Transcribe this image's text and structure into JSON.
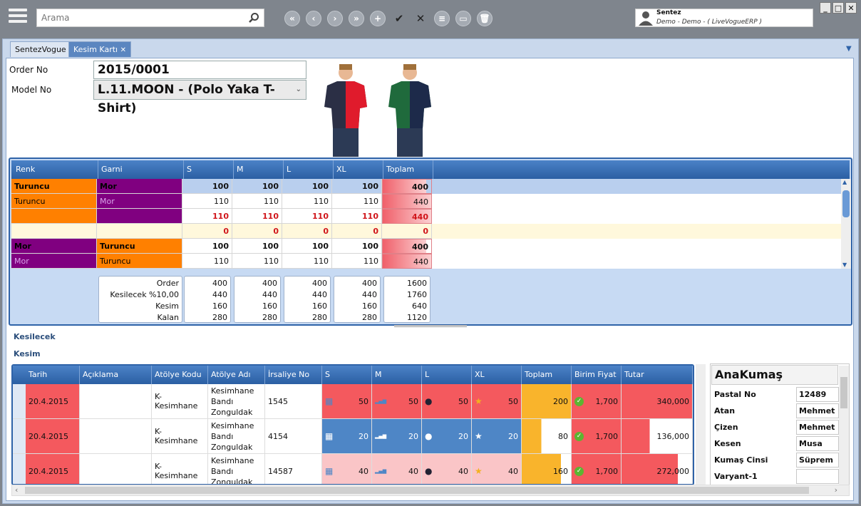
{
  "search": {
    "placeholder": "Arama"
  },
  "user": {
    "name": "Sentez",
    "company": "Demo - Demo - ( LiveVogueERP )"
  },
  "tabs": [
    {
      "label": "SentezVogue"
    },
    {
      "label": "Kesim Kartı"
    }
  ],
  "form": {
    "order_label": "Order No",
    "order_value": "2015/0001",
    "model_label": "Model No",
    "model_value": "L.11.MOON - (Polo Yaka T-Shirt)"
  },
  "grid": {
    "headers": [
      "Renk",
      "Garni",
      "S",
      "M",
      "L",
      "XL",
      "Toplam"
    ],
    "rows": [
      {
        "renk": "Turuncu",
        "garni": "Mor",
        "v": [
          "100",
          "100",
          "100",
          "100"
        ],
        "t": "400",
        "type": "bold",
        "rc": "#ff8000",
        "gc": "#800080",
        "fill": 0.9
      },
      {
        "renk": "Turuncu",
        "garni": "Mor",
        "v": [
          "110",
          "110",
          "110",
          "110"
        ],
        "t": "440",
        "type": "normal",
        "rc": "#ff8000",
        "gc": "#800080",
        "fill": 1
      },
      {
        "renk": "",
        "garni": "",
        "v": [
          "110",
          "110",
          "110",
          "110"
        ],
        "t": "440",
        "type": "red",
        "rc": "#ff8000",
        "gc": "#800080",
        "fill": 1
      },
      {
        "renk": "",
        "garni": "",
        "v": [
          "0",
          "0",
          "0",
          "0"
        ],
        "t": "0",
        "type": "redzero",
        "rc": "#fff8dc",
        "gc": "#fff8dc",
        "fill": 0
      },
      {
        "renk": "Mor",
        "garni": "Turuncu",
        "v": [
          "100",
          "100",
          "100",
          "100"
        ],
        "t": "400",
        "type": "bold",
        "rc": "#800080",
        "gc": "#ff8000",
        "fill": 0.9
      },
      {
        "renk": "Mor",
        "garni": "Turuncu",
        "v": [
          "110",
          "110",
          "110",
          "110"
        ],
        "t": "440",
        "type": "normal",
        "rc": "#800080",
        "gc": "#ff8000",
        "fill": 1
      }
    ],
    "summary": {
      "labels": [
        "Order",
        "Kesilecek %10,00",
        "Kesim",
        "Kalan"
      ],
      "cols": [
        [
          "400",
          "440",
          "160",
          "280"
        ],
        [
          "400",
          "440",
          "160",
          "280"
        ],
        [
          "400",
          "440",
          "160",
          "280"
        ],
        [
          "400",
          "440",
          "160",
          "280"
        ],
        [
          "1600",
          "1760",
          "640",
          "1120"
        ]
      ]
    }
  },
  "sections": {
    "kesilecek": "Kesilecek",
    "kesim": "Kesim"
  },
  "kesim": {
    "headers": [
      "Tarih",
      "Açıklama",
      "Atölye Kodu",
      "Atölye Adı",
      "İrsaliye No",
      "S",
      "M",
      "L",
      "XL",
      "Toplam",
      "Birim Fiyat",
      "Tutar"
    ],
    "rows": [
      {
        "tarih": "20.4.2015",
        "aciklama": "",
        "kod": "K-Kesimhane",
        "ad": "Kesimhane Bandı Zonguldak",
        "irsaliye": "1545",
        "s": "50",
        "m": "50",
        "l": "50",
        "xl": "50",
        "toplam": "200",
        "fiyat": "1,700",
        "tutar": "340,000",
        "bg": "#f4595e",
        "tfill": 1,
        "ufill": 1
      },
      {
        "tarih": "20.4.2015",
        "aciklama": "",
        "kod": "K-Kesimhane",
        "ad": "Kesimhane Bandı Zonguldak",
        "irsaliye": "4154",
        "s": "20",
        "m": "20",
        "l": "20",
        "xl": "20",
        "toplam": "80",
        "fiyat": "1,700",
        "tutar": "136,000",
        "bg": "#4e86c6",
        "tfill": 0.4,
        "ufill": 0.4
      },
      {
        "tarih": "20.4.2015",
        "aciklama": "",
        "kod": "K-Kesimhane",
        "ad": "Kesimhane Bandı Zonguldak",
        "irsaliye": "14587",
        "s": "40",
        "m": "40",
        "l": "40",
        "xl": "40",
        "toplam": "160",
        "fiyat": "1,700",
        "tutar": "272,000",
        "bg": "#fac5c7",
        "tfill": 0.8,
        "ufill": 0.8
      }
    ]
  },
  "anakumas": {
    "title": "AnaKumaş",
    "fields": [
      [
        "Pastal No",
        "12489"
      ],
      [
        "Atan",
        "Mehmet"
      ],
      [
        "Çizen",
        "Mehmet"
      ],
      [
        "Kesen",
        "Musa"
      ],
      [
        "Kumaş Cinsi",
        "Süprem"
      ],
      [
        "Varyant-1",
        ""
      ]
    ]
  }
}
